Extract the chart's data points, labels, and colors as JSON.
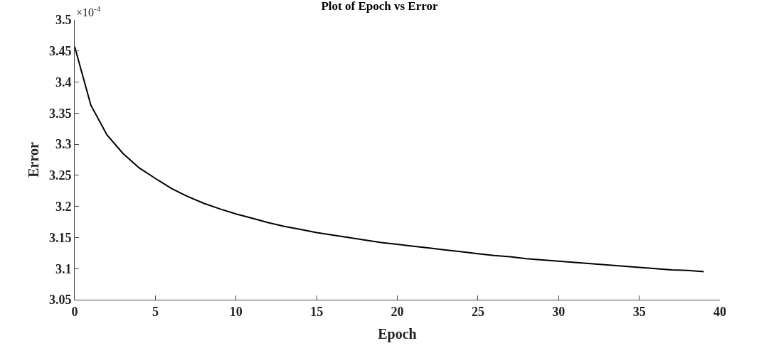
{
  "chart_data": {
    "type": "line",
    "title": "Plot of Epoch vs Error",
    "xlabel": "Epoch",
    "ylabel": "Error",
    "annotations": [
      "×10$^{-4}$"
    ],
    "x": [
      0,
      1,
      2,
      3,
      4,
      5,
      6,
      7,
      8,
      9,
      10,
      11,
      12,
      13,
      14,
      15,
      16,
      17,
      18,
      19,
      20,
      21,
      22,
      23,
      24,
      25,
      26,
      27,
      28,
      29,
      30,
      31,
      32,
      33,
      34,
      35,
      36,
      37,
      38,
      39
    ],
    "series": [
      {
        "color": "#000000",
        "values": [
          3.457,
          3.363,
          3.315,
          3.285,
          3.262,
          3.245,
          3.229,
          3.216,
          3.205,
          3.196,
          3.188,
          3.181,
          3.174,
          3.168,
          3.163,
          3.158,
          3.154,
          3.15,
          3.146,
          3.142,
          3.139,
          3.136,
          3.133,
          3.13,
          3.127,
          3.124,
          3.121,
          3.119,
          3.116,
          3.114,
          3.112,
          3.11,
          3.108,
          3.106,
          3.104,
          3.102,
          3.1,
          3.098,
          3.097,
          3.095
        ]
      }
    ],
    "xlim": [
      0,
      40
    ],
    "xticks": [
      0,
      5,
      10,
      15,
      20,
      25,
      30,
      35,
      40
    ],
    "ylim": [
      3.05,
      3.5
    ],
    "yticks": [
      3.05,
      3.1,
      3.15,
      3.2,
      3.25,
      3.3,
      3.35,
      3.4,
      3.45,
      3.5
    ],
    "legend": false,
    "marker": "none",
    "line_style": "solid"
  }
}
